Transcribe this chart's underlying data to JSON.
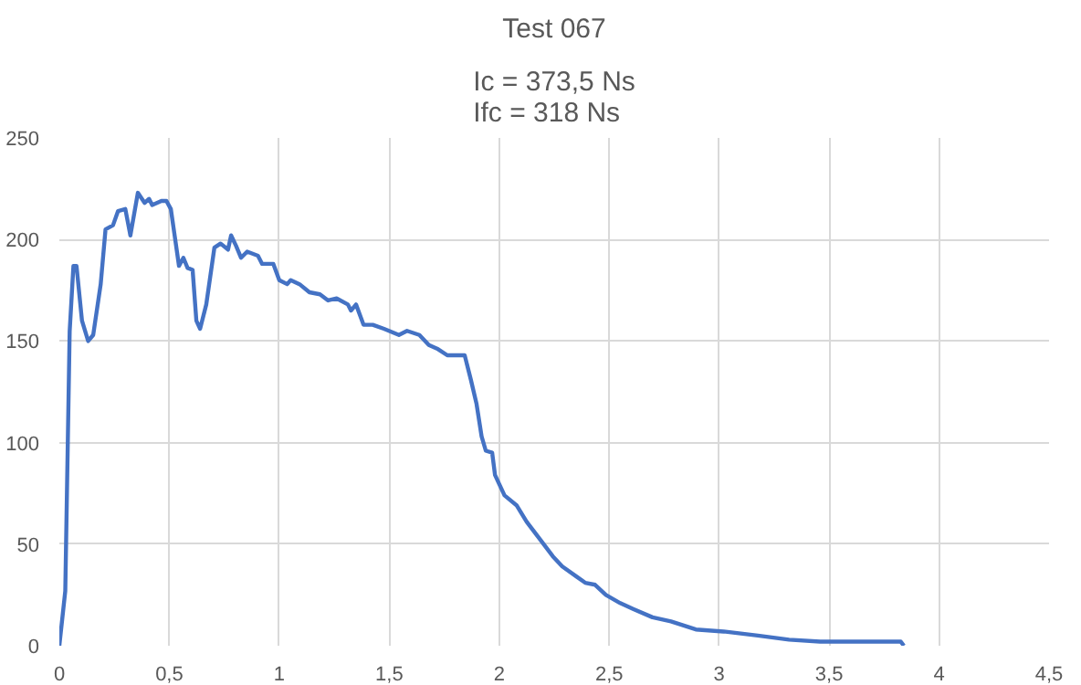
{
  "chart_data": {
    "type": "line",
    "title": "Test 067",
    "subtitle": "Ic = 373,5 Ns\nIfc =  318 Ns",
    "x": [
      0,
      0.027,
      0.047,
      0.064,
      0.078,
      0.103,
      0.131,
      0.154,
      0.188,
      0.21,
      0.244,
      0.267,
      0.3,
      0.323,
      0.357,
      0.388,
      0.408,
      0.422,
      0.464,
      0.487,
      0.507,
      0.544,
      0.564,
      0.583,
      0.606,
      0.623,
      0.64,
      0.668,
      0.705,
      0.733,
      0.767,
      0.781,
      0.803,
      0.826,
      0.854,
      0.903,
      0.922,
      0.973,
      1.0,
      1.036,
      1.052,
      1.092,
      1.137,
      1.185,
      1.222,
      1.261,
      1.312,
      1.326,
      1.349,
      1.383,
      1.425,
      1.476,
      1.544,
      1.581,
      1.637,
      1.68,
      1.722,
      1.764,
      1.843,
      1.871,
      1.897,
      1.92,
      1.939,
      1.968,
      1.981,
      2.024,
      2.08,
      2.125,
      2.174,
      2.244,
      2.287,
      2.352,
      2.391,
      2.436,
      2.485,
      2.55,
      2.611,
      2.697,
      2.781,
      2.894,
      3.021,
      3.176,
      3.318,
      3.459,
      3.826,
      3.84
    ],
    "series": [
      {
        "color": "#4472c4",
        "values": [
          0,
          27,
          155,
          187,
          187,
          160,
          150,
          153,
          178,
          205,
          207,
          214,
          215,
          202,
          223,
          218,
          220,
          217,
          219,
          219,
          215,
          187,
          191,
          186,
          185,
          160,
          156,
          168,
          196,
          198,
          195,
          202,
          197,
          191,
          194,
          192,
          188,
          188,
          180,
          178,
          180,
          178,
          174,
          173,
          170,
          171,
          168,
          165,
          168,
          158,
          158,
          156,
          153,
          155,
          153,
          148,
          146,
          143,
          143,
          131,
          119,
          103,
          96,
          95,
          84,
          74,
          69,
          61,
          54,
          44,
          39,
          34,
          31,
          30,
          25,
          21,
          18,
          14,
          12,
          8,
          7,
          5,
          3,
          2,
          2,
          0
        ]
      }
    ],
    "xlim": [
      0,
      4.5
    ],
    "ylim": [
      0,
      250
    ],
    "xticks": [
      0,
      {
        "value": 0.5,
        "label": "0,5"
      },
      1,
      {
        "value": 1.5,
        "label": "1,5"
      },
      2,
      {
        "value": 2.5,
        "label": "2,5"
      },
      3,
      {
        "value": 3.5,
        "label": "3,5"
      },
      4,
      {
        "value": 4.5,
        "label": "4,5"
      }
    ],
    "yticks": [
      0,
      50,
      100,
      150,
      200,
      250
    ],
    "grid": true,
    "marker": "none",
    "line_style": "solid"
  }
}
